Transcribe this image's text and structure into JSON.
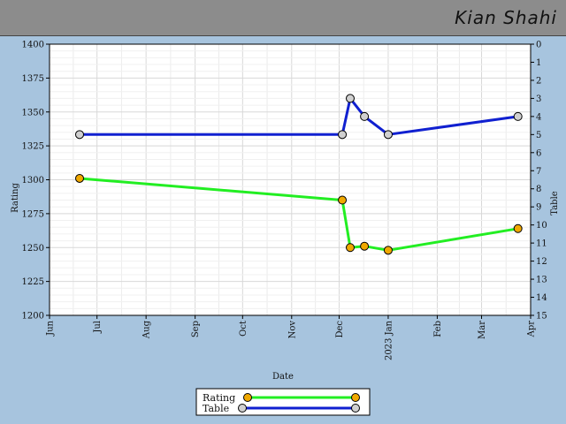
{
  "header": {
    "player_name": "Kian Shahi"
  },
  "chart_data": {
    "type": "line",
    "xlabel": "Date",
    "ylabel_left": "Rating",
    "ylabel_right": "Table",
    "x_ticks": [
      "Jun",
      "Jul",
      "Aug",
      "Sep",
      "Oct",
      "Nov",
      "Dec",
      "2023 Jan",
      "Feb",
      "Mar",
      "Apr"
    ],
    "x_tick_dates": [
      "2022-06-01",
      "2022-07-01",
      "2022-08-01",
      "2022-09-01",
      "2022-10-01",
      "2022-11-01",
      "2022-12-01",
      "2023-01-01",
      "2023-02-01",
      "2023-03-01",
      "2023-04-01"
    ],
    "x_range": [
      "2022-06-01",
      "2023-04-01"
    ],
    "y_left_ticks": [
      1200,
      1225,
      1250,
      1275,
      1300,
      1325,
      1350,
      1375,
      1400
    ],
    "y_left_range": [
      1200,
      1400
    ],
    "y_right_ticks": [
      0,
      1,
      2,
      3,
      4,
      5,
      6,
      7,
      8,
      9,
      10,
      11,
      12,
      13,
      14,
      15
    ],
    "y_right_range": [
      0,
      15
    ],
    "y_right_inverted": true,
    "grid": true,
    "legend_position": "bottom-center",
    "series": [
      {
        "name": "Rating",
        "axis": "left",
        "color": "#22ee22",
        "marker_color": "#f0a800",
        "points": [
          {
            "x": "2022-06-20",
            "y": 1301
          },
          {
            "x": "2022-12-03",
            "y": 1285
          },
          {
            "x": "2022-12-08",
            "y": 1250
          },
          {
            "x": "2022-12-17",
            "y": 1251
          },
          {
            "x": "2023-01-01",
            "y": 1248
          },
          {
            "x": "2023-03-24",
            "y": 1264
          }
        ]
      },
      {
        "name": "Table",
        "axis": "right",
        "color": "#1020d0",
        "marker_color": "#d0d0d0",
        "points": [
          {
            "x": "2022-06-20",
            "y": 5
          },
          {
            "x": "2022-12-03",
            "y": 5
          },
          {
            "x": "2022-12-08",
            "y": 3
          },
          {
            "x": "2022-12-17",
            "y": 4
          },
          {
            "x": "2023-01-01",
            "y": 5
          },
          {
            "x": "2023-03-24",
            "y": 4
          }
        ]
      }
    ]
  }
}
